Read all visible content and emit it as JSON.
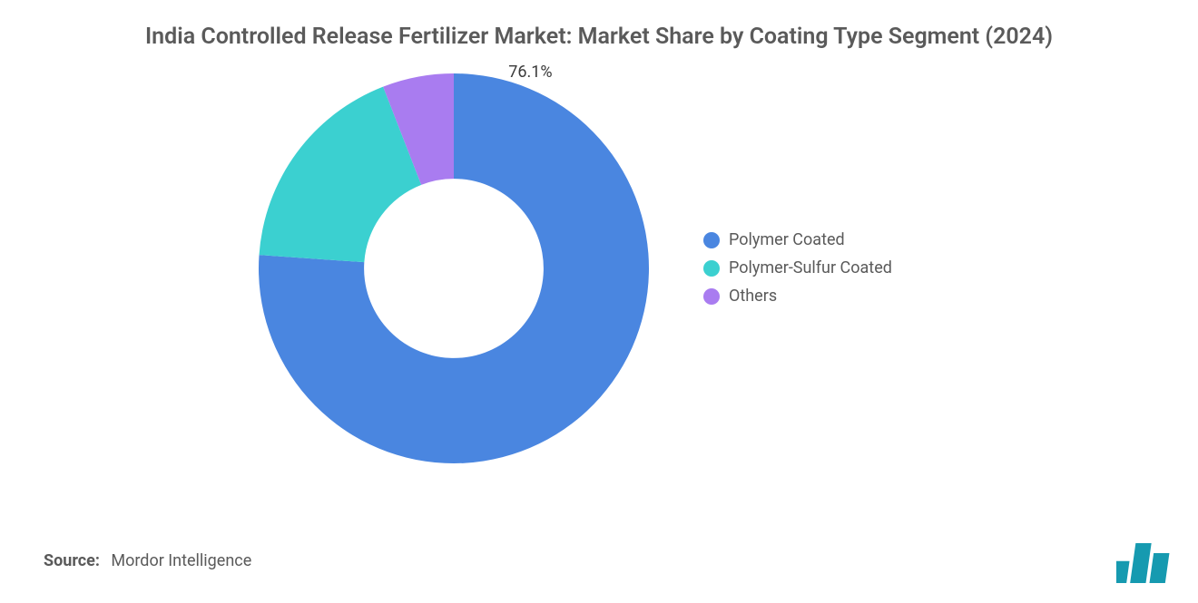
{
  "title": "India Controlled Release Fertilizer Market: Market Share by Coating Type Segment (2024)",
  "title_color": "#5a5a5a",
  "title_fontsize": 25,
  "chart": {
    "type": "donut",
    "background_color": "#ffffff",
    "inner_radius_ratio": 0.46,
    "outer_radius": 215,
    "start_angle_deg": -90,
    "series": [
      {
        "label": "Polymer Coated",
        "value": 76.1,
        "color": "#4a86e0",
        "show_label": true,
        "label_text": "76.1%"
      },
      {
        "label": "Polymer-Sulfur Coated",
        "value": 18.0,
        "color": "#3bd0d0",
        "show_label": false
      },
      {
        "label": "Others",
        "value": 5.9,
        "color": "#a97cf0",
        "show_label": false
      }
    ],
    "label_fontsize": 18,
    "label_color": "#3a3a3a"
  },
  "legend": {
    "position": "right",
    "fontsize": 18,
    "text_color": "#5a5a5a",
    "swatch_shape": "circle",
    "swatch_size": 18,
    "items": [
      {
        "label": "Polymer Coated",
        "color": "#4a86e0"
      },
      {
        "label": "Polymer-Sulfur Coated",
        "color": "#3bd0d0"
      },
      {
        "label": "Others",
        "color": "#a97cf0"
      }
    ]
  },
  "source": {
    "label": "Source:",
    "text": "Mordor Intelligence",
    "fontsize": 18,
    "color": "#5a5a5a"
  },
  "logo": {
    "bar_color": "#169ab0",
    "bars": [
      0.55,
      1.0,
      0.75
    ]
  }
}
